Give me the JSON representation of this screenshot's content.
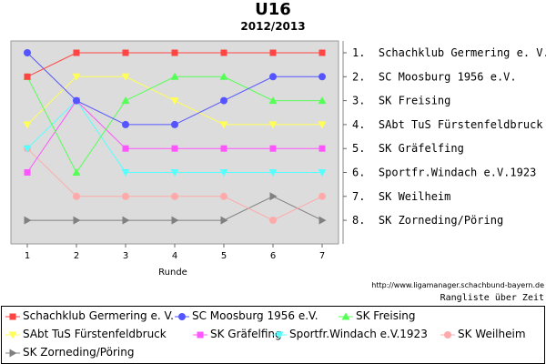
{
  "header": {
    "title": "U16",
    "subtitle": "2012/2013"
  },
  "footer": {
    "url": "http://www.ligamanager.schachbund-bayern.de",
    "view_label": "Rangliste über Zeit"
  },
  "chart_data": {
    "type": "line",
    "title": "U16",
    "subtitle": "2012/2013",
    "xlabel": "Runde",
    "ylabel": "",
    "x": [
      1,
      2,
      3,
      4,
      5,
      6,
      7
    ],
    "ylim": [
      1,
      8
    ],
    "y_inverted": true,
    "y_tick_labels": [
      "1.  Schachklub Germering e. V.",
      "2.  SC Moosburg 1956 e.V.",
      "3.  SK Freising",
      "4.  SAbt TuS Fürstenfeldbruck",
      "5.  SK Gräfelfing",
      "6.  Sportfr.Windach e.V.1923",
      "7.  SK Weilheim",
      "8.  SK Zorneding/Pöring"
    ],
    "legend_position": "bottom",
    "background": "#dcdcdc",
    "series": [
      {
        "name": "Schachklub Germering e. V.",
        "color": "#ff4444",
        "marker": "square",
        "values": [
          2,
          1,
          1,
          1,
          1,
          1,
          1
        ]
      },
      {
        "name": "SC Moosburg 1956 e.V.",
        "color": "#5555ff",
        "marker": "circle",
        "values": [
          1,
          3,
          4,
          4,
          3,
          2,
          2
        ]
      },
      {
        "name": "SK Freising",
        "color": "#55ff55",
        "marker": "triangle-up",
        "values": [
          2,
          6,
          3,
          2,
          2,
          3,
          3
        ]
      },
      {
        "name": "SAbt TuS Fürstenfeldbruck",
        "color": "#ffff55",
        "marker": "triangle-down",
        "values": [
          4,
          2,
          2,
          3,
          4,
          4,
          4
        ]
      },
      {
        "name": "SK Gräfelfing",
        "color": "#ff55ff",
        "marker": "square",
        "values": [
          6,
          3,
          5,
          5,
          5,
          5,
          5
        ]
      },
      {
        "name": "Sportfr.Windach e.V.1923",
        "color": "#55ffff",
        "marker": "triangle-down",
        "values": [
          5,
          3,
          6,
          6,
          6,
          6,
          6
        ]
      },
      {
        "name": "SK Weilheim",
        "color": "#ffaaaa",
        "marker": "circle",
        "values": [
          5,
          7,
          7,
          7,
          7,
          8,
          7
        ]
      },
      {
        "name": "SK Zorneding/Pöring",
        "color": "#808080",
        "marker": "triangle-right",
        "values": [
          8,
          8,
          8,
          8,
          8,
          7,
          8
        ]
      }
    ]
  }
}
